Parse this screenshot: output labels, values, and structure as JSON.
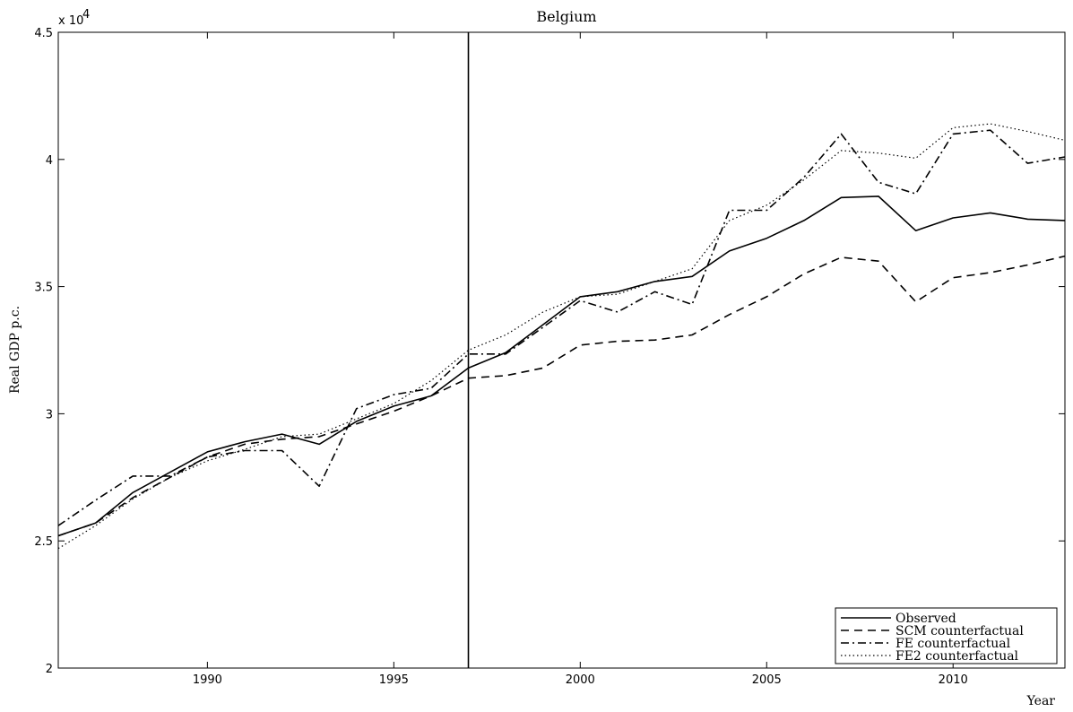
{
  "chart_data": {
    "type": "line",
    "title": "Belgium",
    "xlabel": "Year",
    "ylabel": "Real GDP p.c.",
    "y_multiplier_label": "x 10",
    "y_multiplier_exponent": "4",
    "xlim": [
      1986,
      2013
    ],
    "ylim": [
      2.0,
      4.5
    ],
    "x_ticks": [
      1990,
      1995,
      2000,
      2005,
      2010
    ],
    "y_ticks": [
      2,
      2.5,
      3,
      3.5,
      4,
      4.5
    ],
    "y_tick_labels": [
      "2",
      "2.5",
      "3",
      "3.5",
      "4",
      "4.5"
    ],
    "treatment_line_x": 1997,
    "legend_position": "bottom-right",
    "x": [
      1986,
      1987,
      1988,
      1989,
      1990,
      1991,
      1992,
      1993,
      1994,
      1995,
      1996,
      1997,
      1998,
      1999,
      2000,
      2001,
      2002,
      2003,
      2004,
      2005,
      2006,
      2007,
      2008,
      2009,
      2010,
      2011,
      2012,
      2013
    ],
    "series": [
      {
        "name": "Observed",
        "style": "solid",
        "values": [
          2.52,
          2.57,
          2.69,
          2.77,
          2.85,
          2.89,
          2.92,
          2.88,
          2.97,
          3.03,
          3.07,
          3.18,
          3.24,
          3.35,
          3.46,
          3.48,
          3.52,
          3.54,
          3.64,
          3.69,
          3.76,
          3.85,
          3.855,
          3.72,
          3.77,
          3.79,
          3.765,
          3.76
        ]
      },
      {
        "name": "SCM counterfactual",
        "style": "dashed",
        "values": [
          2.52,
          2.57,
          2.67,
          2.75,
          2.83,
          2.88,
          2.9,
          2.91,
          2.96,
          3.01,
          3.07,
          3.14,
          3.15,
          3.18,
          3.27,
          3.285,
          3.29,
          3.31,
          3.39,
          3.46,
          3.55,
          3.615,
          3.6,
          3.44,
          3.535,
          3.555,
          3.585,
          3.62
        ]
      },
      {
        "name": "FE counterfactual",
        "style": "dashdot",
        "values": [
          2.56,
          2.66,
          2.755,
          2.755,
          2.83,
          2.855,
          2.855,
          2.715,
          3.02,
          3.075,
          3.1,
          3.235,
          3.235,
          3.34,
          3.445,
          3.4,
          3.48,
          3.43,
          3.8,
          3.8,
          3.93,
          4.1,
          3.91,
          3.865,
          4.1,
          4.115,
          3.985,
          4.01
        ]
      },
      {
        "name": "FE2 counterfactual",
        "style": "dotted",
        "values": [
          2.47,
          2.56,
          2.665,
          2.75,
          2.815,
          2.86,
          2.91,
          2.92,
          2.98,
          3.04,
          3.13,
          3.25,
          3.31,
          3.4,
          3.46,
          3.47,
          3.52,
          3.57,
          3.76,
          3.82,
          3.92,
          4.035,
          4.025,
          4.005,
          4.125,
          4.14,
          4.11,
          4.075
        ]
      }
    ]
  }
}
